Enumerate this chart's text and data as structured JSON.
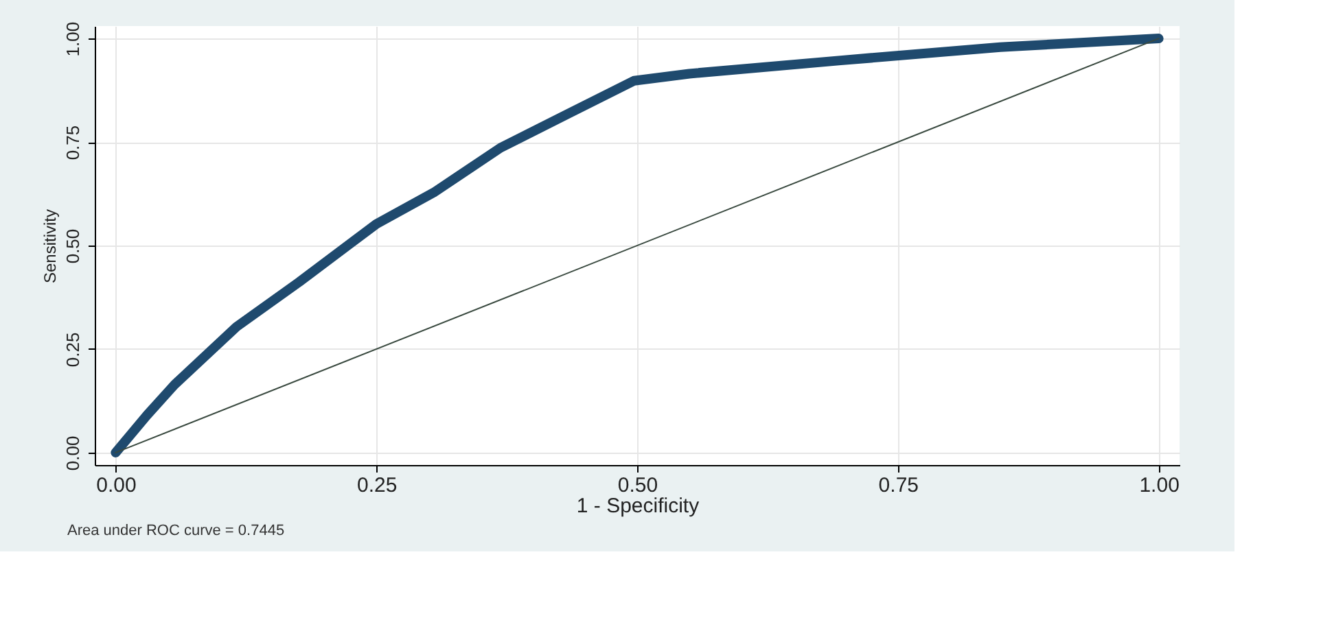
{
  "chart_data": {
    "type": "line",
    "xlabel": "1 - Specificity",
    "ylabel": "Sensitivity",
    "series": [
      {
        "color": "#1f4a6e",
        "x": [
          0,
          0.03,
          0.0565,
          0.116,
          0.176,
          0.25,
          0.305,
          0.369,
          0.433,
          0.497,
          0.55,
          0.695,
          0.848,
          1.0
        ],
        "values": [
          0,
          0.09,
          0.164,
          0.304,
          0.412,
          0.552,
          0.628,
          0.736,
          0.817,
          0.898,
          0.915,
          0.947,
          0.979,
          1.0
        ]
      },
      {
        "color": "#3a4a40",
        "x": [
          0,
          1
        ],
        "values": [
          0,
          1
        ]
      }
    ],
    "xlim": [
      -0.02,
      1.02
    ],
    "ylim": [
      -0.03,
      1.03
    ],
    "xticks": [
      {
        "value": 0,
        "label": "0.00"
      },
      0.25,
      {
        "value": 0.5,
        "label": "0.50"
      },
      0.75,
      {
        "value": 1,
        "label": "1.00"
      }
    ],
    "yticks": [
      {
        "value": 0,
        "label": "0.00"
      },
      0.25,
      {
        "value": 0.5,
        "label": "0.50"
      },
      0.75,
      {
        "value": 1,
        "label": "1.00"
      }
    ],
    "grid": true,
    "annotations": [
      "Area under ROC curve = 0.7445"
    ]
  }
}
